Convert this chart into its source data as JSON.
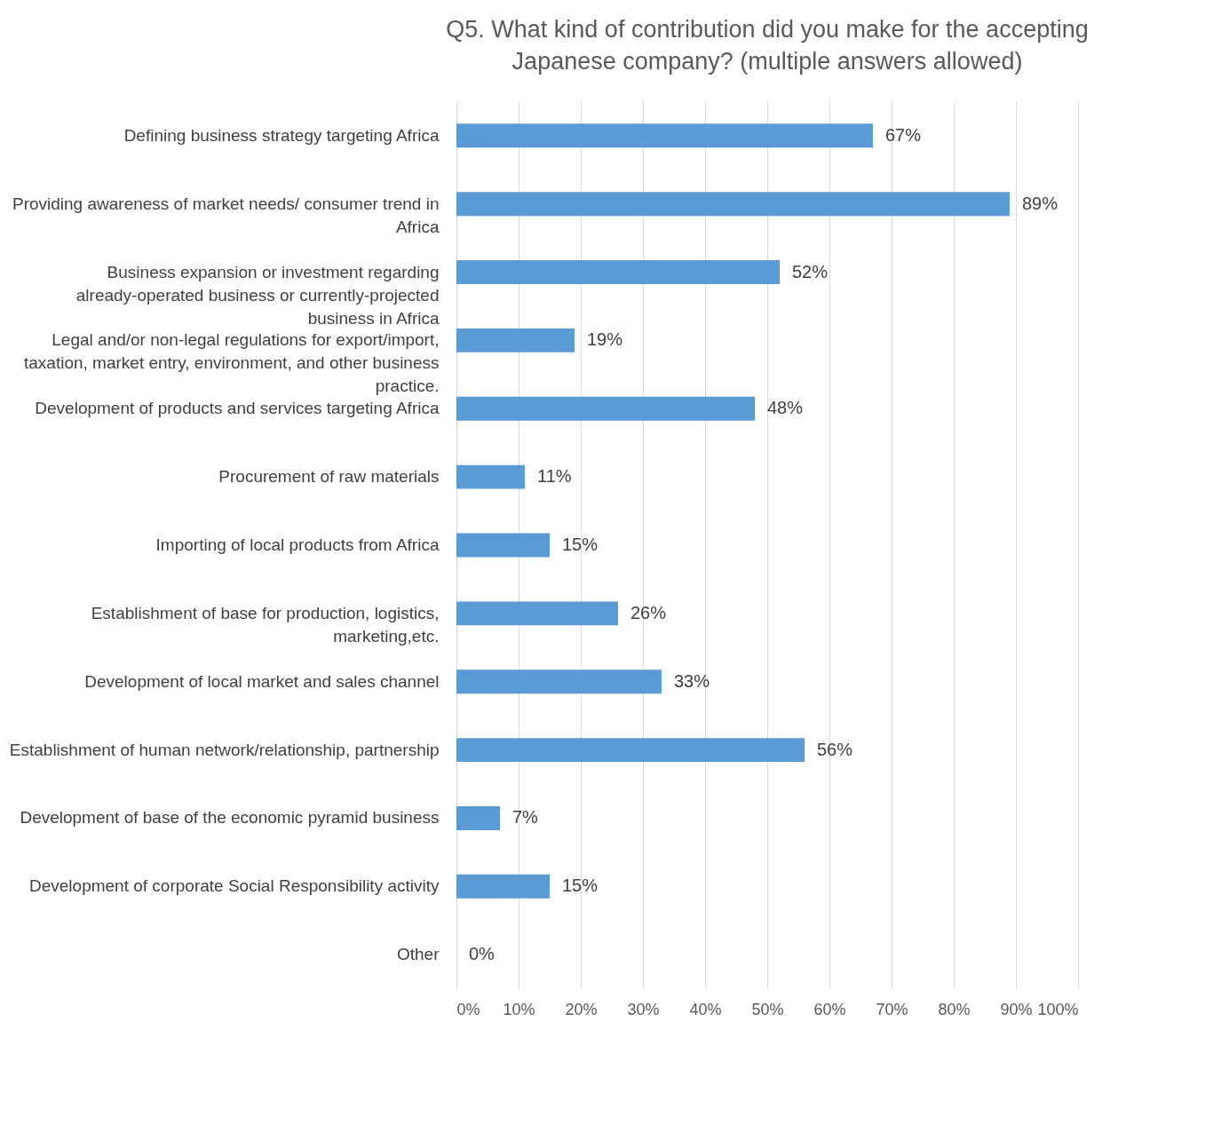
{
  "chart_data": {
    "type": "bar",
    "orientation": "horizontal",
    "title": "Q5. What kind of contribution did you make for the accepting Japanese company? (multiple answers allowed)",
    "categories": [
      "Defining business strategy targeting Africa",
      "Providing awareness of market needs/ consumer trend in Africa",
      "Business expansion or investment regarding already-operated business or currently-projected business in Africa",
      "Legal and/or non-legal regulations for export/import, taxation, market entry, environment, and other business practice.",
      "Development of products and services targeting Africa",
      "Procurement of raw materials",
      "Importing of local products from Africa",
      "Establishment of base for production, logistics, marketing,etc.",
      "Development of local market and sales channel",
      "Establishment of human network/relationship, partnership",
      "Development of base of the economic pyramid business",
      "Development of corporate Social Responsibility activity",
      "Other"
    ],
    "values": [
      67,
      89,
      52,
      19,
      48,
      11,
      15,
      26,
      33,
      56,
      7,
      15,
      0
    ],
    "value_labels": [
      "67%",
      "89%",
      "52%",
      "19%",
      "48%",
      "11%",
      "15%",
      "26%",
      "33%",
      "56%",
      "7%",
      "15%",
      "0%"
    ],
    "color": "#5b9bd5",
    "xlim": [
      0,
      100
    ],
    "xticks": [
      {
        "value": 0,
        "label": "0%"
      },
      {
        "value": 10,
        "label": "10%"
      },
      {
        "value": 20,
        "label": "20%"
      },
      {
        "value": 30,
        "label": "30%"
      },
      {
        "value": 40,
        "label": "40%"
      },
      {
        "value": 50,
        "label": "50%"
      },
      {
        "value": 60,
        "label": "60%"
      },
      {
        "value": 70,
        "label": "70%"
      },
      {
        "value": 80,
        "label": "80%"
      },
      {
        "value": 90,
        "label": "90%"
      },
      {
        "value": 100,
        "label": "100%"
      }
    ],
    "grid": "x"
  }
}
